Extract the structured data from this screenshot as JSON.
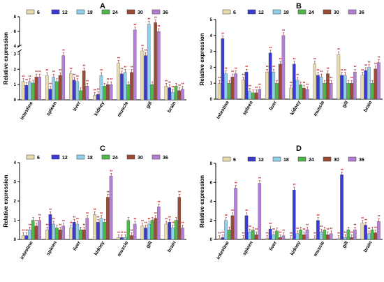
{
  "colors": {
    "6": "#e8dcae",
    "12": "#3b3bd1",
    "18": "#8fd0ea",
    "24": "#4fb84a",
    "30": "#9a4a35",
    "36": "#b57fd6",
    "error": "#9e1f1f",
    "sig": "#b21818"
  },
  "chart_data": [
    {
      "type": "bar",
      "title": "A",
      "ylabel": "Relative expression",
      "legend": [
        "6",
        "12",
        "18",
        "24",
        "30",
        "36"
      ],
      "categories": [
        "intestine",
        "spleen",
        "liver",
        "kidney",
        "muscle",
        "gill",
        "brain"
      ],
      "broken_axis": true,
      "lower_yticks": [
        "0",
        "1",
        "2",
        "3"
      ],
      "upper_yticks": [
        "4",
        "6",
        "8"
      ],
      "series": [
        {
          "name": "6",
          "values": [
            1.2,
            1.6,
            1.7,
            0.3,
            2.4,
            3.5,
            0.9
          ]
        },
        {
          "name": "12",
          "values": [
            0.95,
            0.7,
            1.3,
            0.35,
            1.7,
            2.9,
            0.8
          ]
        },
        {
          "name": "18",
          "values": [
            1.2,
            1.5,
            1.2,
            1.6,
            1.8,
            7.0,
            0.5
          ]
        },
        {
          "name": "24",
          "values": [
            1.1,
            1.2,
            0.6,
            0.9,
            1.0,
            1.0,
            0.9
          ]
        },
        {
          "name": "30",
          "values": [
            1.5,
            1.6,
            1.9,
            1.0,
            1.8,
            7.2,
            0.6
          ]
        },
        {
          "name": "36",
          "values": [
            1.5,
            2.9,
            0.9,
            1.0,
            6.2,
            6.0,
            0.7
          ]
        }
      ]
    },
    {
      "type": "bar",
      "title": "B",
      "ylabel": "Relative expression",
      "legend": [
        "6",
        "12",
        "18",
        "24",
        "30",
        "36"
      ],
      "categories": [
        "intestine",
        "spleen",
        "liver",
        "kidney",
        "muscle",
        "gill",
        "brain"
      ],
      "yticks": [
        "0",
        "1",
        "2",
        "3",
        "4",
        "5"
      ],
      "ylim": [
        0,
        5
      ],
      "series": [
        {
          "name": "6",
          "values": [
            1.0,
            1.2,
            1.7,
            0.7,
            2.2,
            2.8,
            1.5
          ]
        },
        {
          "name": "12",
          "values": [
            3.8,
            1.7,
            2.9,
            2.2,
            1.5,
            1.5,
            1.8
          ]
        },
        {
          "name": "18",
          "values": [
            1.6,
            0.5,
            1.7,
            1.2,
            1.4,
            1.5,
            2.0
          ]
        },
        {
          "name": "24",
          "values": [
            1.0,
            0.4,
            1.0,
            0.9,
            1.0,
            1.0,
            1.0
          ]
        },
        {
          "name": "30",
          "values": [
            1.4,
            0.4,
            2.2,
            0.7,
            1.6,
            1.0,
            1.9
          ]
        },
        {
          "name": "36",
          "values": [
            1.6,
            0.6,
            4.0,
            0.6,
            1.0,
            1.7,
            2.3
          ]
        }
      ]
    },
    {
      "type": "bar",
      "title": "C",
      "ylabel": "Relative expression",
      "legend": [
        "6",
        "12",
        "18",
        "24",
        "30",
        "36"
      ],
      "categories": [
        "intestine",
        "spleen",
        "liver",
        "kidney",
        "muscle",
        "gill",
        "brain"
      ],
      "yticks": [
        "0",
        "1",
        "2",
        "3",
        "4"
      ],
      "ylim": [
        0,
        4
      ],
      "series": [
        {
          "name": "6",
          "values": [
            0.2,
            0.5,
            0.6,
            1.3,
            0.1,
            0.7,
            0.8
          ]
        },
        {
          "name": "12",
          "values": [
            0.2,
            1.3,
            0.9,
            0.9,
            0.1,
            0.6,
            0.9
          ]
        },
        {
          "name": "18",
          "values": [
            0.5,
            0.8,
            0.8,
            1.1,
            0.1,
            0.8,
            0.6
          ]
        },
        {
          "name": "24",
          "values": [
            1.0,
            0.6,
            0.5,
            0.9,
            1.0,
            1.0,
            1.0
          ]
        },
        {
          "name": "30",
          "values": [
            0.7,
            0.5,
            0.5,
            2.2,
            0.2,
            1.1,
            2.2
          ]
        },
        {
          "name": "36",
          "values": [
            1.0,
            0.7,
            1.1,
            3.3,
            0.8,
            1.7,
            0.6
          ]
        }
      ]
    },
    {
      "type": "bar",
      "title": "D",
      "ylabel": "Relative expression",
      "legend": [
        "6",
        "12",
        "18",
        "24",
        "30",
        "36"
      ],
      "categories": [
        "intestine",
        "spleen",
        "liver",
        "kidney",
        "muscle",
        "gill",
        "brain"
      ],
      "yticks": [
        "0",
        "2",
        "4",
        "6",
        "8"
      ],
      "ylim": [
        0,
        8
      ],
      "series": [
        {
          "name": "6",
          "values": [
            0.1,
            0.1,
            0.1,
            0.1,
            0.1,
            0.1,
            1.7
          ]
        },
        {
          "name": "12",
          "values": [
            0.2,
            2.5,
            1.1,
            5.2,
            2.0,
            6.8,
            1.5
          ]
        },
        {
          "name": "18",
          "values": [
            2.0,
            0.8,
            0.5,
            0.6,
            0.8,
            0.2,
            0.6
          ]
        },
        {
          "name": "24",
          "values": [
            1.0,
            1.0,
            0.9,
            1.0,
            1.0,
            1.0,
            1.0
          ]
        },
        {
          "name": "30",
          "values": [
            2.5,
            0.5,
            0.2,
            0.5,
            0.5,
            0.2,
            0.7
          ]
        },
        {
          "name": "36",
          "values": [
            5.4,
            5.9,
            0.4,
            1.0,
            0.6,
            1.0,
            1.9
          ]
        }
      ]
    }
  ]
}
